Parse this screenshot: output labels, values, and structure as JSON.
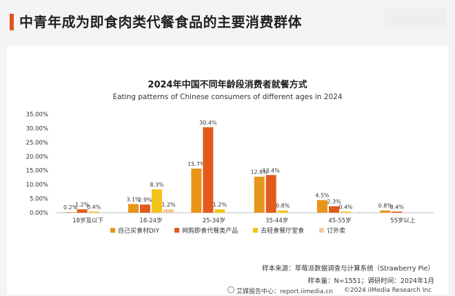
{
  "page": {
    "title": "中青年成为即食肉类代餐食品的主要消费群体"
  },
  "chart_data": {
    "type": "bar",
    "title": "2024年中国不同年龄段消费者就餐方式",
    "subtitle": "Eating patterns of Chinese consumers of different ages in 2024",
    "categories": [
      "18岁及以下",
      "18-24岁",
      "25-34岁",
      "35-44岁",
      "45-55岁",
      "55岁以上"
    ],
    "series": [
      {
        "name": "自己买食材DIY",
        "color": "#e8951a",
        "values": [
          0.2,
          3.1,
          15.7,
          12.8,
          4.5,
          0.8
        ],
        "labels": [
          "0.2%",
          "3.1%",
          "15.7%",
          "12.8%",
          "4.5%",
          "0.8%"
        ]
      },
      {
        "name": "网购即食代餐类产品",
        "color": "#e25b1c",
        "values": [
          1.2,
          2.9,
          30.4,
          13.4,
          2.3,
          0.4
        ],
        "labels": [
          "1.2%",
          "2.9%",
          "30.4%",
          "13.4%",
          "2.3%",
          "0.4%"
        ]
      },
      {
        "name": "去轻食餐厅堂食",
        "color": "#f4c319",
        "values": [
          0.4,
          8.3,
          1.2,
          0.8,
          0.4,
          0.0
        ],
        "labels": [
          "0.4%",
          "8.3%",
          "1.2%",
          "0.8%",
          "0.4%",
          ""
        ]
      },
      {
        "name": "订外卖",
        "color": "#f3c99a",
        "values": [
          0.0,
          1.2,
          0.0,
          0.0,
          0.0,
          0.0
        ],
        "labels": [
          "",
          "1.2%",
          "",
          "",
          "",
          ""
        ]
      }
    ],
    "ylim": [
      0,
      35
    ],
    "yticks": [
      "0.00%",
      "5.00%",
      "10.00%",
      "15.00%",
      "20.00%",
      "25.00%",
      "30.00%",
      "35.00%"
    ],
    "ytick_values": [
      0,
      5,
      10,
      15,
      20,
      25,
      30,
      35
    ],
    "grid": false,
    "legend": "bottom"
  },
  "source": {
    "line1": "样本来源：草莓派数据调查与计算系统（Strawberry Pie）",
    "line2": "样本量：N=1551；调研时间：2024年1月"
  },
  "footer": {
    "site": "艾媒报告中心：report.iimedia.cn",
    "copyright": "©2024  iiMedia Research  Inc"
  }
}
